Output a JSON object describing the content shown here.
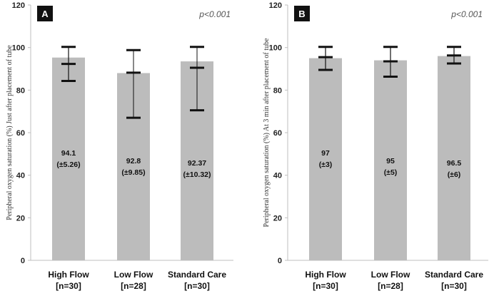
{
  "chart_data": [
    {
      "type": "bar",
      "panel": "A",
      "annotation": "p<0.001",
      "ylabel": "Peripheral  oxygen  saturation  (%)  Just  after placement  of  tube",
      "ylim": [
        0,
        120
      ],
      "yticks": [
        "0",
        "20",
        "40",
        "60",
        "80",
        "100",
        "120"
      ],
      "categories": [
        {
          "name": "High Flow",
          "n": "[n=30]"
        },
        {
          "name": "Low Flow",
          "n": "[n=28]"
        },
        {
          "name": "Standard Care",
          "n": "[n=30]"
        }
      ],
      "values": [
        95.3,
        88.0,
        93.5
      ],
      "error_low": [
        84.3,
        67.0,
        70.5
      ],
      "error_high": [
        100.3,
        98.8,
        100.3
      ],
      "mid_tick": [
        92.3,
        88.2,
        90.5
      ],
      "labels": [
        {
          "mean": "94.1",
          "sd": "(±5.26)"
        },
        {
          "mean": "92.8",
          "sd": "(±9.85)"
        },
        {
          "mean": "92.37",
          "sd": "(±10.32)"
        }
      ]
    },
    {
      "type": "bar",
      "panel": "B",
      "annotation": "p<0.001",
      "ylabel": "Peripheral  oxygen  saturation  (%)  At  3  min  after placement  of  tube",
      "ylim": [
        0,
        120
      ],
      "yticks": [
        "0",
        "20",
        "40",
        "60",
        "80",
        "100",
        "120"
      ],
      "categories": [
        {
          "name": "High Flow",
          "n": "[n=30]"
        },
        {
          "name": "Low Flow",
          "n": "[n=28]"
        },
        {
          "name": "Standard Care",
          "n": "[n=30]"
        }
      ],
      "values": [
        95.0,
        94.0,
        96.0
      ],
      "error_low": [
        89.5,
        86.3,
        92.5
      ],
      "error_high": [
        100.3,
        100.3,
        100.3
      ],
      "mid_tick": [
        95.5,
        93.5,
        96.3
      ],
      "labels": [
        {
          "mean": "97",
          "sd": "(±3)"
        },
        {
          "mean": "95",
          "sd": "(±5)"
        },
        {
          "mean": "96.5",
          "sd": "(±6)"
        }
      ]
    }
  ],
  "colors": {
    "bar": "#bcbcbc",
    "axis": "#bfbfbf",
    "error": "#111111",
    "badge": "#111111"
  }
}
